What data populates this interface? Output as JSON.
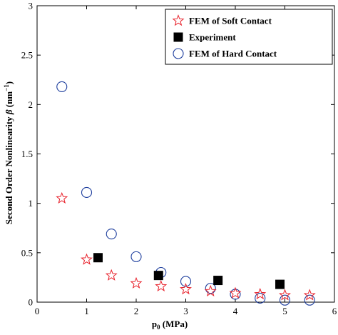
{
  "chart_data": {
    "type": "scatter",
    "xlabel_base": "p",
    "xlabel_sub": "0",
    "xlabel_rest": " (MPa)",
    "ylabel_main": "Second Order Nonlinearity ",
    "ylabel_beta": "β",
    "ylabel_unit_open": " (nm",
    "ylabel_unit_sup": "−1",
    "ylabel_unit_close": ")",
    "xlim": [
      0,
      6
    ],
    "ylim": [
      0,
      3
    ],
    "xticks": [
      0,
      1,
      2,
      3,
      4,
      5,
      6
    ],
    "yticks": [
      0,
      0.5,
      1,
      1.5,
      2,
      2.5,
      3
    ],
    "xtick_labels": [
      "0",
      "1",
      "2",
      "3",
      "4",
      "5",
      "6"
    ],
    "ytick_labels": [
      "0",
      "0.5",
      "1",
      "1.5",
      "2",
      "2.5",
      "3"
    ],
    "legend_position": "top-right",
    "grid": false,
    "series": [
      {
        "name": "FEM of Soft Contact",
        "marker": "star",
        "color": "#e8202a",
        "x": [
          0.5,
          1.0,
          1.5,
          2.0,
          2.5,
          3.0,
          3.5,
          4.0,
          4.5,
          5.0,
          5.5
        ],
        "y": [
          1.05,
          0.43,
          0.27,
          0.19,
          0.16,
          0.13,
          0.11,
          0.09,
          0.08,
          0.07,
          0.07
        ]
      },
      {
        "name": "Experiment",
        "marker": "square",
        "color": "#000000",
        "x": [
          1.23,
          2.45,
          3.65,
          4.9
        ],
        "y": [
          0.45,
          0.27,
          0.22,
          0.18
        ]
      },
      {
        "name": "FEM of Hard Contact",
        "marker": "circle",
        "color": "#1f3f9e",
        "x": [
          0.5,
          1.0,
          1.5,
          2.0,
          2.5,
          3.0,
          3.5,
          4.0,
          4.5,
          5.0,
          5.5
        ],
        "y": [
          2.18,
          1.11,
          0.69,
          0.46,
          0.3,
          0.21,
          0.14,
          0.08,
          0.04,
          0.02,
          0.02
        ]
      }
    ]
  }
}
